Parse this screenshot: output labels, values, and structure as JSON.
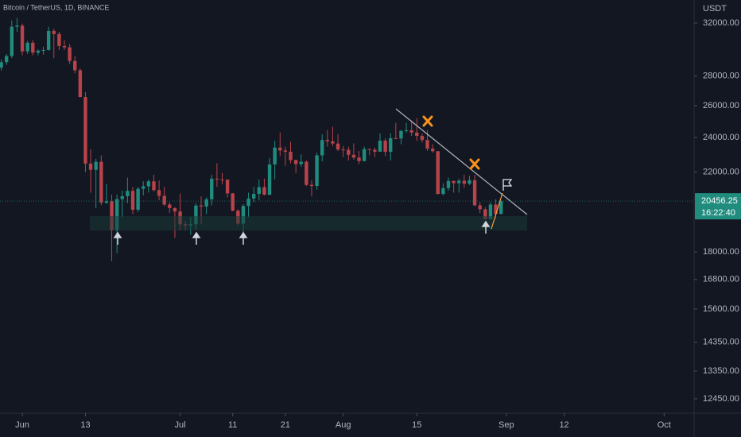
{
  "chart_data": {
    "type": "candlestick",
    "title": "Bitcoin / TetherUS, 1D, BINANCE",
    "currency": "USDT",
    "last_price": 20456.25,
    "countdown": "16:22:40",
    "log_scale": true,
    "up_color": "#1f8c7e",
    "down_color": "#b8434a",
    "ylim": [
      12010,
      33900
    ],
    "yticks": [
      {
        "value": 12450,
        "label": "12450.00"
      },
      {
        "value": 13350,
        "label": "13350.00"
      },
      {
        "value": 14350,
        "label": "14350.00"
      },
      {
        "value": 15600,
        "label": "15600.00"
      },
      {
        "value": 16800,
        "label": "16800.00"
      },
      {
        "value": 18000,
        "label": "18000.00"
      },
      {
        "value": 22000,
        "label": "22000.00"
      },
      {
        "value": 24000,
        "label": "24000.00"
      },
      {
        "value": 26000,
        "label": "26000.00"
      },
      {
        "value": 28000,
        "label": "28000.00"
      },
      {
        "value": 32000,
        "label": "32000.00"
      }
    ],
    "xlim": [
      -4.24,
      127.7
    ],
    "xticks": [
      {
        "value": 0,
        "label": "Jun"
      },
      {
        "value": 12,
        "label": "13"
      },
      {
        "value": 30,
        "label": "Jul"
      },
      {
        "value": 40,
        "label": "11"
      },
      {
        "value": 50,
        "label": "21"
      },
      {
        "value": 61,
        "label": "Aug"
      },
      {
        "value": 75,
        "label": "15"
      },
      {
        "value": 92,
        "label": "Sep"
      },
      {
        "value": 103,
        "label": "12"
      },
      {
        "value": 122,
        "label": "Oct"
      }
    ],
    "x": [
      -4,
      -3,
      -2,
      -1,
      0,
      1,
      2,
      3,
      4,
      5,
      6,
      7,
      8,
      9,
      10,
      11,
      12,
      13,
      14,
      15,
      16,
      17,
      18,
      19,
      20,
      21,
      22,
      23,
      24,
      25,
      26,
      27,
      28,
      29,
      30,
      31,
      32,
      33,
      34,
      35,
      36,
      37,
      38,
      39,
      40,
      41,
      42,
      43,
      44,
      45,
      46,
      47,
      48,
      49,
      50,
      51,
      52,
      53,
      54,
      55,
      56,
      57,
      58,
      59,
      60,
      61,
      62,
      63,
      64,
      65,
      66,
      67,
      68,
      69,
      70,
      71,
      72,
      73,
      74,
      75,
      76,
      77,
      78,
      79,
      80,
      81,
      82,
      83,
      84,
      85,
      86,
      87,
      88,
      89,
      90,
      91
    ],
    "open": [
      28600,
      29000,
      29450,
      31700,
      31790,
      29800,
      30450,
      29700,
      29850,
      29900,
      31370,
      31125,
      30200,
      30100,
      29090,
      28420,
      26570,
      22480,
      22130,
      22580,
      20380,
      20450,
      19010,
      20560,
      20710,
      20990,
      20020,
      21100,
      21230,
      21500,
      21030,
      20730,
      20280,
      20100,
      19930,
      19300,
      19240,
      19300,
      20230,
      20180,
      20550,
      21640,
      21600,
      21590,
      20860,
      19970,
      19330,
      20210,
      20590,
      20830,
      21190,
      20790,
      22430,
      23400,
      23230,
      23160,
      22680,
      22450,
      22580,
      21310,
      21250,
      22950,
      23850,
      23770,
      23640,
      23290,
      23270,
      22980,
      22820,
      22620,
      23310,
      23270,
      23160,
      23810,
      23150,
      23960,
      23940,
      24400,
      24440,
      24300,
      24100,
      23850,
      23340,
      23190,
      20830,
      21140,
      21520,
      21400,
      21530,
      21370,
      21560,
      20240,
      20040,
      19550,
      20280,
      19800
    ],
    "high": [
      29200,
      29600,
      32200,
      32400,
      31950,
      30600,
      30650,
      29950,
      30150,
      31700,
      31550,
      31300,
      30650,
      30350,
      29450,
      28550,
      26900,
      23300,
      22750,
      22950,
      21350,
      20800,
      20800,
      21000,
      21700,
      21200,
      21200,
      21500,
      21600,
      21850,
      21550,
      21200,
      20400,
      20150,
      20850,
      19450,
      19650,
      20350,
      20700,
      20650,
      21850,
      22500,
      21950,
      21600,
      20880,
      20050,
      20300,
      20900,
      21200,
      21600,
      21650,
      22800,
      23800,
      24300,
      23450,
      23750,
      22700,
      23000,
      22650,
      21550,
      23100,
      24200,
      24450,
      24650,
      24200,
      23500,
      23450,
      23650,
      23200,
      23450,
      23350,
      23400,
      24250,
      23950,
      24250,
      24900,
      24450,
      24900,
      25050,
      25200,
      24250,
      24450,
      23600,
      23200,
      21400,
      21700,
      21550,
      21650,
      21850,
      21800,
      21850,
      20400,
      20150,
      20400,
      20550,
      20500
    ],
    "low": [
      28400,
      28800,
      29300,
      31300,
      29500,
      29600,
      29500,
      29500,
      29550,
      29850,
      29300,
      29900,
      29900,
      28850,
      28200,
      26560,
      22000,
      20900,
      20100,
      20250,
      20300,
      17600,
      17950,
      19650,
      20350,
      19800,
      19900,
      20750,
      20900,
      20950,
      20500,
      20200,
      19850,
      18650,
      19000,
      19000,
      18800,
      19050,
      19300,
      19800,
      20250,
      21200,
      21350,
      20650,
      19950,
      19250,
      18900,
      19650,
      20400,
      20500,
      20750,
      20750,
      21600,
      22900,
      22350,
      22500,
      21950,
      22300,
      21250,
      20700,
      21050,
      22600,
      23450,
      23500,
      23200,
      22850,
      22650,
      22700,
      22450,
      22600,
      22950,
      22850,
      23150,
      22900,
      22650,
      23900,
      23600,
      24300,
      24100,
      23800,
      23700,
      23200,
      23100,
      20800,
      20750,
      21000,
      20900,
      20900,
      21150,
      21300,
      20200,
      19850,
      19550,
      19550,
      19550,
      19800
    ],
    "close": [
      29000,
      29450,
      31700,
      31790,
      29800,
      30450,
      29700,
      29850,
      29900,
      31370,
      31125,
      30200,
      30100,
      29090,
      28420,
      26570,
      22480,
      22130,
      22580,
      20380,
      20450,
      19010,
      20560,
      20710,
      20990,
      20020,
      21100,
      21230,
      21500,
      21030,
      20730,
      20280,
      20100,
      19930,
      19300,
      19240,
      19300,
      20230,
      20180,
      20550,
      21640,
      21600,
      21590,
      20860,
      19970,
      19330,
      20210,
      20590,
      20830,
      21190,
      20790,
      22430,
      23400,
      23230,
      23160,
      22680,
      22450,
      22580,
      21310,
      21250,
      22950,
      23850,
      23770,
      23640,
      23290,
      23270,
      22980,
      22820,
      22620,
      23310,
      23270,
      23160,
      23810,
      23150,
      23960,
      23940,
      24400,
      24440,
      24300,
      24100,
      23850,
      23340,
      23190,
      20830,
      21140,
      21520,
      21400,
      21530,
      21370,
      21560,
      20240,
      20040,
      19550,
      20280,
      19800,
      20456.25
    ]
  }
}
